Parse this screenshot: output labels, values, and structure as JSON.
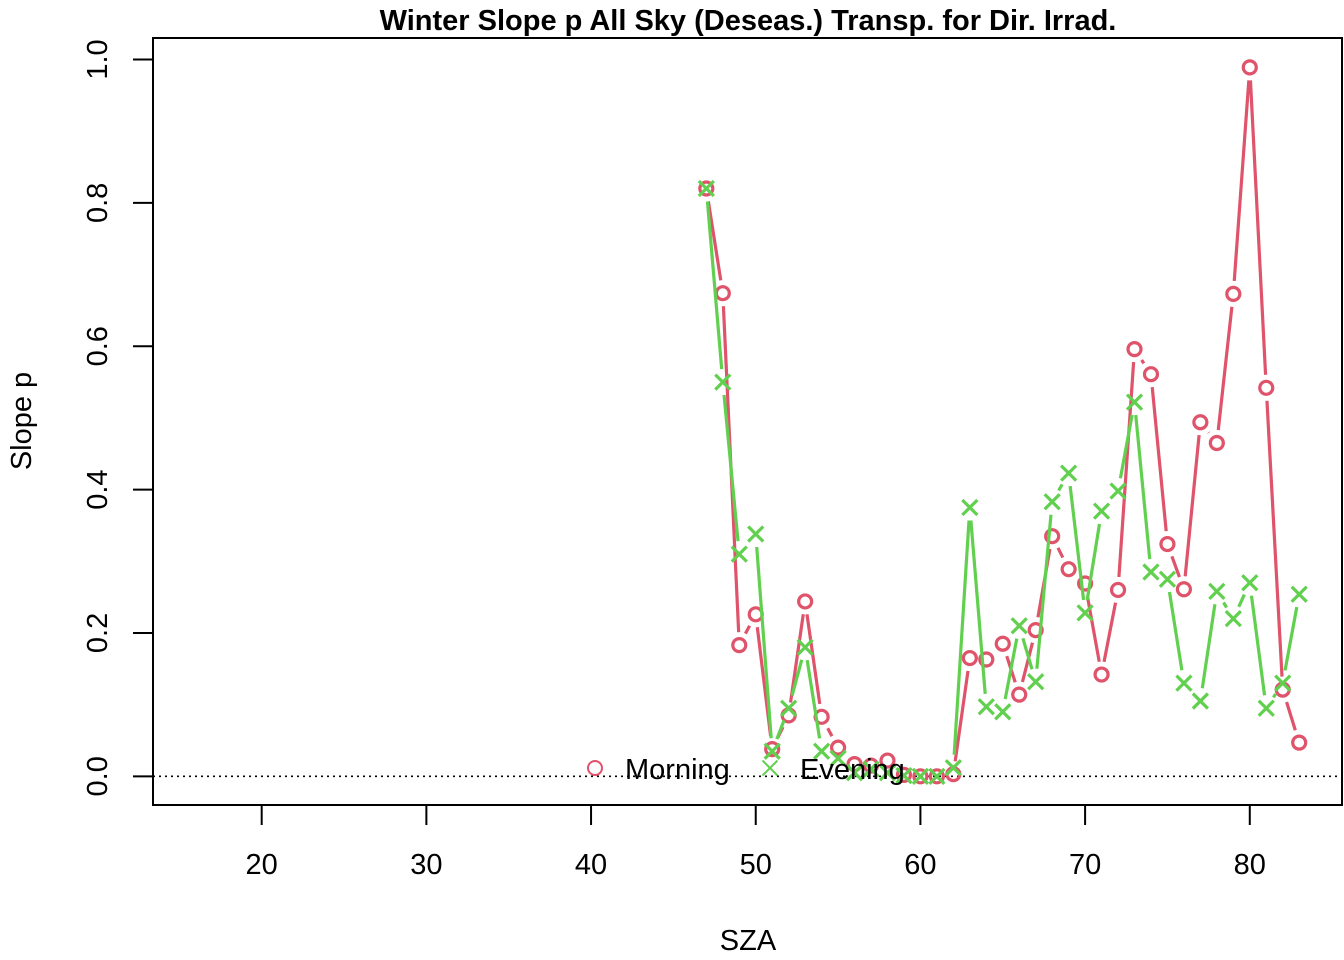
{
  "chart_data": {
    "type": "line",
    "title": "Winter Slope p All Sky (Deseas.) Transp. for Dir. Irrad.",
    "xlabel": "SZA",
    "ylabel": "Slope p",
    "xlim": [
      13.4,
      85.6
    ],
    "ylim": [
      -0.04,
      1.03
    ],
    "xticks": [
      "20",
      "30",
      "40",
      "50",
      "60",
      "70",
      "80"
    ],
    "yticks": [
      "0.0",
      "0.2",
      "0.4",
      "0.6",
      "0.8",
      "1.0"
    ],
    "reference_line": {
      "y": 0,
      "style": "dotted"
    },
    "legend_position": "bottom-center",
    "series": [
      {
        "name": "Morning",
        "marker": "circle",
        "color": "#DF536B",
        "x": [
          47,
          48,
          49,
          50,
          51,
          52,
          53,
          54,
          55,
          56,
          57,
          58,
          59,
          60,
          61,
          62,
          63,
          64,
          65,
          66,
          67,
          68,
          69,
          70,
          71,
          72,
          73,
          74,
          75,
          76,
          77,
          78,
          79,
          80,
          81,
          82,
          83
        ],
        "values": [
          0.82,
          0.674,
          0.183,
          0.226,
          0.038,
          0.085,
          0.244,
          0.083,
          0.04,
          0.017,
          0.015,
          0.022,
          0.002,
          0.0,
          0.0,
          0.003,
          0.165,
          0.163,
          0.185,
          0.114,
          0.204,
          0.335,
          0.289,
          0.269,
          0.142,
          0.26,
          0.596,
          0.561,
          0.324,
          0.261,
          0.494,
          0.465,
          0.673,
          0.989,
          0.542,
          0.121,
          0.047
        ]
      },
      {
        "name": "Evening",
        "marker": "cross",
        "color": "#61D04F",
        "x": [
          47,
          48,
          49,
          50,
          51,
          52,
          53,
          54,
          55,
          56,
          57,
          58,
          59,
          60,
          61,
          62,
          63,
          64,
          65,
          66,
          67,
          68,
          69,
          70,
          71,
          72,
          73,
          74,
          75,
          76,
          77,
          78,
          79,
          80,
          81,
          82,
          83
        ],
        "values": [
          0.82,
          0.55,
          0.31,
          0.338,
          0.035,
          0.095,
          0.18,
          0.035,
          0.025,
          0.005,
          0.01,
          0.005,
          0.001,
          0.0,
          0.0,
          0.012,
          0.375,
          0.097,
          0.09,
          0.21,
          0.132,
          0.383,
          0.423,
          0.228,
          0.37,
          0.398,
          0.522,
          0.285,
          0.275,
          0.13,
          0.105,
          0.258,
          0.22,
          0.27,
          0.095,
          0.13,
          0.254
        ]
      }
    ]
  }
}
